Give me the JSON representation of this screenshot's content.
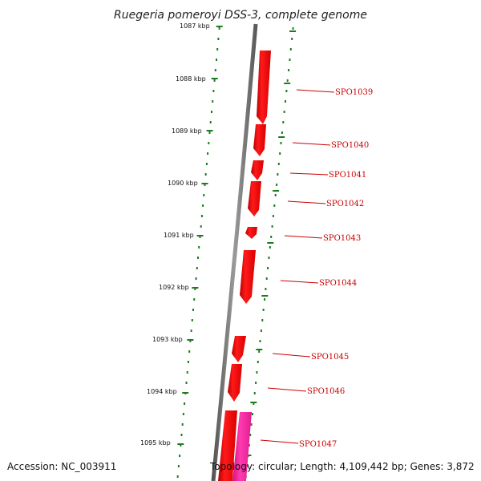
{
  "title": "Ruegeria pomeroyi DSS-3, complete genome",
  "footer": {
    "accession": "Accession: NC_003911",
    "topology": "Topology: circular; Length: 4,109,442 bp; Genes: 3,872"
  },
  "colors": {
    "backbone": "#6e6e6e",
    "scale_ticks": "#1f7a1f",
    "gene_forward": "#ee0000",
    "gene_highlight": "#ff2aa0",
    "gene_label": "#cc0000"
  },
  "scale": {
    "unit": "kbp",
    "labels": [
      "1087 kbp",
      "1088 kbp",
      "1089 kbp",
      "1090 kbp",
      "1091 kbp",
      "1092 kbp",
      "1093 kbp",
      "1094 kbp",
      "1095 kbp"
    ]
  },
  "genes": [
    {
      "locus": "SPO1039"
    },
    {
      "locus": "SPO1040"
    },
    {
      "locus": "SPO1041"
    },
    {
      "locus": "SPO1042"
    },
    {
      "locus": "SPO1043"
    },
    {
      "locus": "SPO1044"
    },
    {
      "locus": "SPO1045"
    },
    {
      "locus": "SPO1046"
    },
    {
      "locus": "SPO1047"
    }
  ]
}
